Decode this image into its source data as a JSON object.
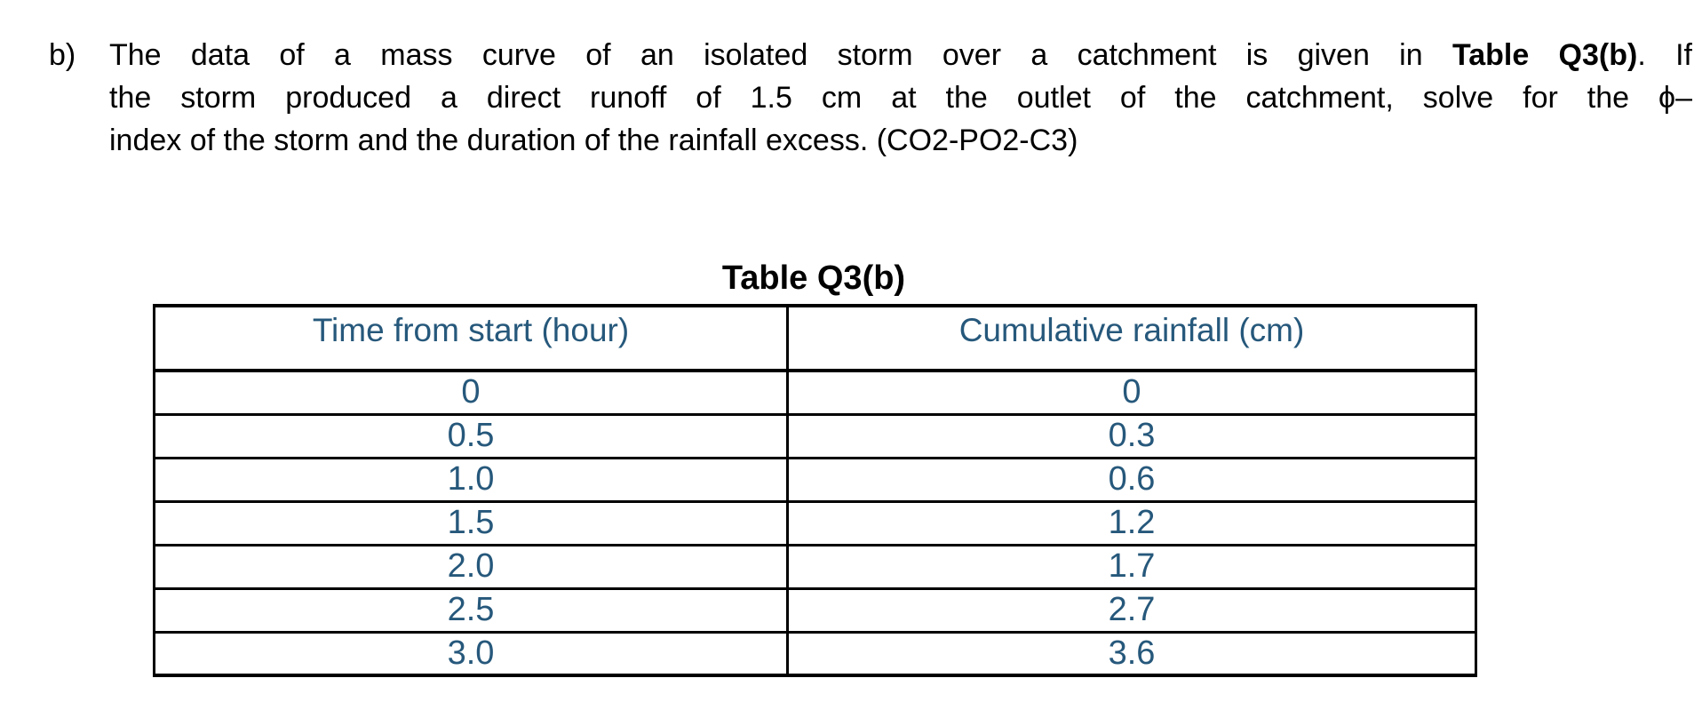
{
  "question": {
    "marker": "b)",
    "line1_pre": "The data of a mass curve of an isolated storm over a catchment is given in ",
    "line1_bold": "Table Q3(b)",
    "line1_post": ". If",
    "line2": "the storm produced a direct runoff of 1.5 cm at the outlet of the catchment, solve for the ϕ–",
    "line3": "index of the storm and the duration of the rainfall excess. (CO2-PO2-C3)"
  },
  "table": {
    "title": "Table Q3(b)",
    "headers": [
      "Time from start (hour)",
      "Cumulative rainfall (cm)"
    ],
    "rows": [
      [
        "0",
        "0"
      ],
      [
        "0.5",
        "0.3"
      ],
      [
        "1.0",
        "0.6"
      ],
      [
        "1.5",
        "1.2"
      ],
      [
        "2.0",
        "1.7"
      ],
      [
        "2.5",
        "2.7"
      ],
      [
        "3.0",
        "3.6"
      ]
    ]
  },
  "colors": {
    "table_text": "#26587B",
    "body_text": "#000000",
    "table_border": "#000000",
    "background": "#FFFFFF"
  },
  "chart_data": {
    "type": "table",
    "title": "Table Q3(b)",
    "columns": [
      "Time from start (hour)",
      "Cumulative rainfall (cm)"
    ],
    "x": [
      0,
      0.5,
      1.0,
      1.5,
      2.0,
      2.5,
      3.0
    ],
    "series": [
      {
        "name": "Cumulative rainfall (cm)",
        "values": [
          0,
          0.3,
          0.6,
          1.2,
          1.7,
          2.7,
          3.6
        ]
      }
    ]
  }
}
